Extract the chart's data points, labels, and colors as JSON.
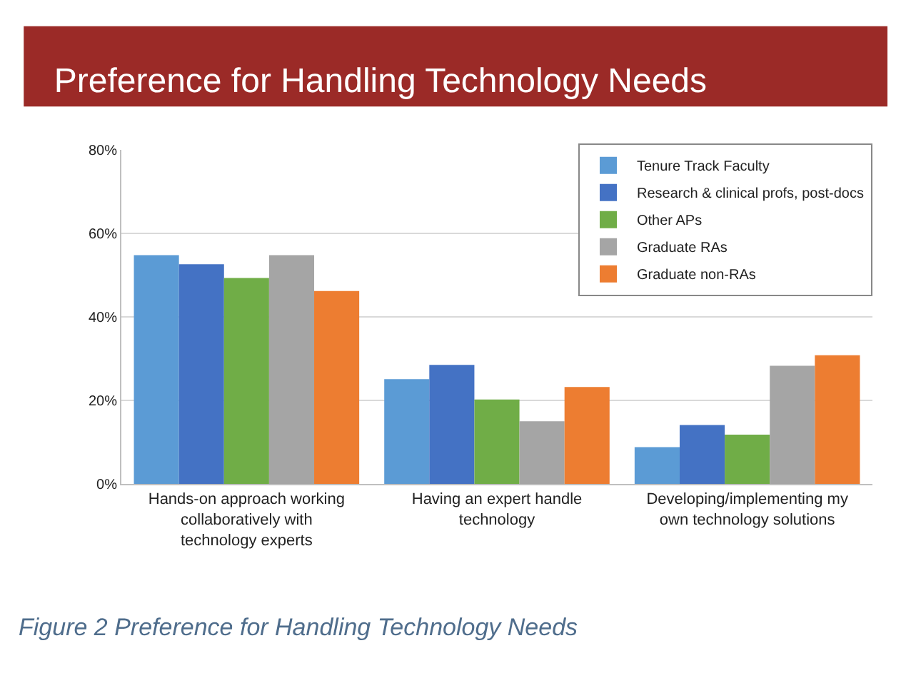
{
  "chart_data": {
    "type": "bar",
    "title": "Preference for Handling Technology Needs",
    "categories": [
      "Hands-on approach working collaboratively with technology experts",
      "Having an expert handle technology",
      "Developing/implementing my own technology solutions"
    ],
    "series": [
      {
        "name": "Tenure Track Faculty",
        "color": "#5b9bd5",
        "values": [
          54.8,
          25.1,
          8.8
        ]
      },
      {
        "name": "Research & clinical profs, post-docs",
        "color": "#4472c4",
        "values": [
          52.6,
          28.5,
          14.1
        ]
      },
      {
        "name": "Other APs",
        "color": "#70ad47",
        "values": [
          49.3,
          20.2,
          11.8
        ]
      },
      {
        "name": "Graduate RAs",
        "color": "#a5a5a5",
        "values": [
          54.8,
          15.0,
          28.3
        ]
      },
      {
        "name": "Graduate non-RAs",
        "color": "#ed7d31",
        "values": [
          46.2,
          23.2,
          30.8
        ]
      }
    ],
    "ylim": [
      0,
      80
    ],
    "yticks": [
      {
        "value": 0,
        "label": "0%"
      },
      {
        "value": 20,
        "label": "20%"
      },
      {
        "value": 40,
        "label": "40%"
      },
      {
        "value": 60,
        "label": "60%"
      },
      {
        "value": 80,
        "label": "80%"
      }
    ],
    "grid": "y",
    "legend": "top right",
    "annotations": [
      "Figure 2 Preference for Handling Technology Needs"
    ]
  }
}
